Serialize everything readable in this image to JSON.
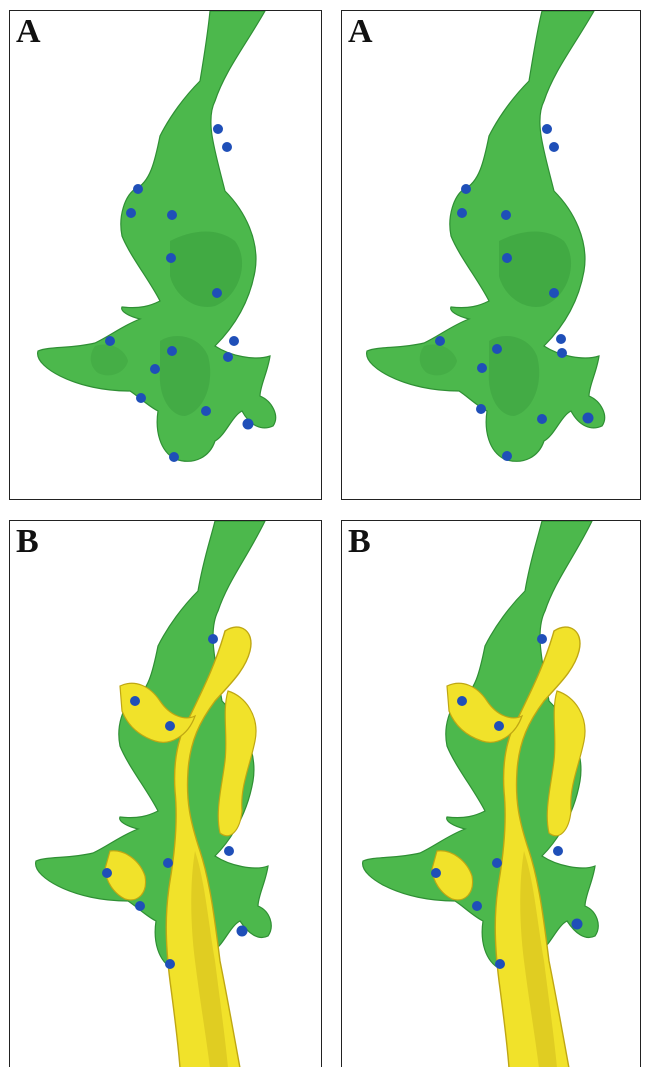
{
  "figure": {
    "panels": [
      {
        "label": "A",
        "variant": "green-only"
      },
      {
        "label": "A",
        "variant": "green-only"
      },
      {
        "label": "B",
        "variant": "green-with-yellow"
      },
      {
        "label": "B",
        "variant": "green-with-yellow"
      }
    ],
    "colors": {
      "green_structure": "#4cb84c",
      "green_shadow": "#2f8f34",
      "yellow_structure": "#f1e22a",
      "yellow_shadow": "#bfa713",
      "blue_dots": "#1f4fb8",
      "border": "#222222",
      "background": "#ffffff"
    }
  }
}
